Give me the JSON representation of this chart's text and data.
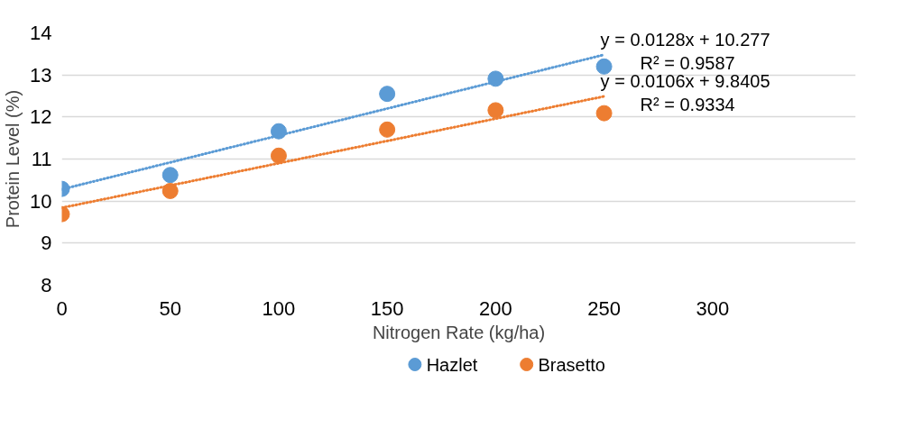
{
  "chart_data": {
    "type": "scatter",
    "xlabel": "Nitrogen Rate (kg/ha)",
    "ylabel": "Protein Level (%)",
    "xlim": [
      0,
      300
    ],
    "xticks": [
      0,
      50,
      100,
      150,
      200,
      250,
      300
    ],
    "ylim": [
      8,
      14
    ],
    "yticks": [
      8,
      9,
      10,
      11,
      12,
      13,
      14
    ],
    "grid": "y",
    "legend": "bottom",
    "marker": "circle",
    "series": [
      {
        "name": "Hazlet",
        "color": "#5b9bd5",
        "x": [
          0,
          50,
          100,
          150,
          200,
          250
        ],
        "values": [
          10.29,
          10.62,
          11.66,
          12.55,
          12.91,
          13.2
        ]
      },
      {
        "name": "Brasetto",
        "color": "#ed7d31",
        "x": [
          0,
          50,
          100,
          150,
          200,
          250
        ],
        "values": [
          9.69,
          10.24,
          11.08,
          11.7,
          12.16,
          12.09
        ]
      },
      {
        "type": "line",
        "color": "#5b9bd5",
        "x": [
          0,
          250
        ],
        "values": [
          10.28,
          13.48
        ],
        "marker": "none",
        "line_style": "dotted"
      },
      {
        "type": "line",
        "color": "#ed7d31",
        "x": [
          0,
          250
        ],
        "values": [
          9.84,
          12.49
        ],
        "marker": "none",
        "line_style": "dotted"
      }
    ],
    "annotations": [
      "y = 0.0128x + 10.277",
      "R² = 0.9587",
      "y = 0.0106x + 9.8405",
      "R² = 0.9334"
    ]
  }
}
